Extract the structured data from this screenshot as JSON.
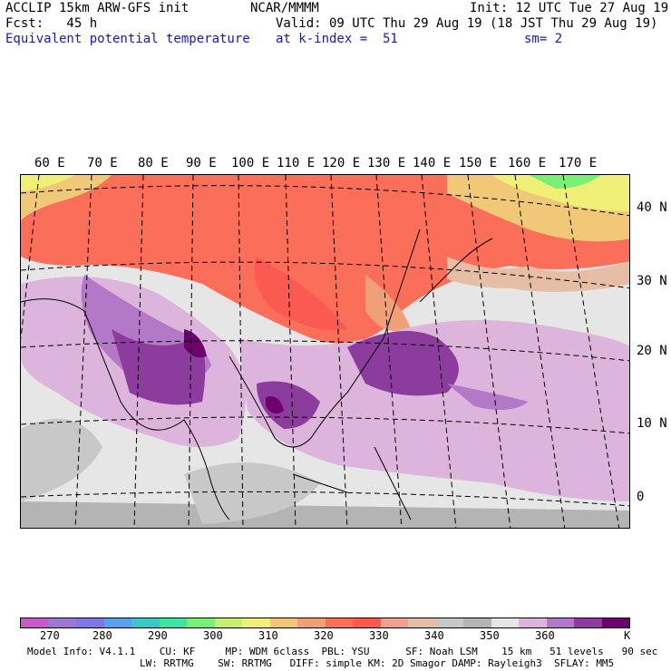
{
  "header": {
    "model_line": "ACCLIP 15km ARW-GFS init",
    "center": "NCAR/MMMM",
    "init": "Init: 12 UTC Tue 27 Aug 19",
    "fcst": "Fcst:   45 h",
    "valid": "Valid: 09 UTC Thu 29 Aug 19 (18 JST Thu 29 Aug 19)",
    "field": "Equivalent potential temperature",
    "level": "at k-index =  51",
    "smooth": "sm= 2"
  },
  "axes": {
    "lon_labels": [
      "60 E",
      "70 E",
      "80 E",
      "90 E",
      "100 E",
      "110 E",
      "120 E",
      "130 E",
      "140 E",
      "150 E",
      "160 E",
      "170 E"
    ],
    "lat_labels": [
      "40 N",
      "30 N",
      "20 N",
      "10 N",
      "0"
    ]
  },
  "colorbar": {
    "colors": [
      "#c85ac8",
      "#a078d2",
      "#7e78e6",
      "#5aa0f0",
      "#3cc8c8",
      "#3ce6a0",
      "#78f078",
      "#c8f070",
      "#f0f078",
      "#f0c878",
      "#f0a078",
      "#fa6e5a",
      "#fa5a50",
      "#f0a08c",
      "#e6bea6",
      "#c8c8c8",
      "#b4b4b4",
      "#e6e6e6",
      "#dcb4dc",
      "#b478c8",
      "#8c3c9c",
      "#6e006e"
    ],
    "tick_labels": [
      "270",
      "280",
      "290",
      "300",
      "310",
      "320",
      "330",
      "340",
      "350",
      "360",
      "K"
    ]
  },
  "footer": {
    "line1": "Model Info: V4.1.1    CU: KF     MP: WDM 6class  PBL: YSU      SF: Noah LSM    15 km   51 levels   90 sec",
    "line2": "LW: RRTMG    SW: RRTMG   DIFF: simple KM: 2D Smagor DAMP: Rayleigh3  SFLAY: MM5"
  }
}
